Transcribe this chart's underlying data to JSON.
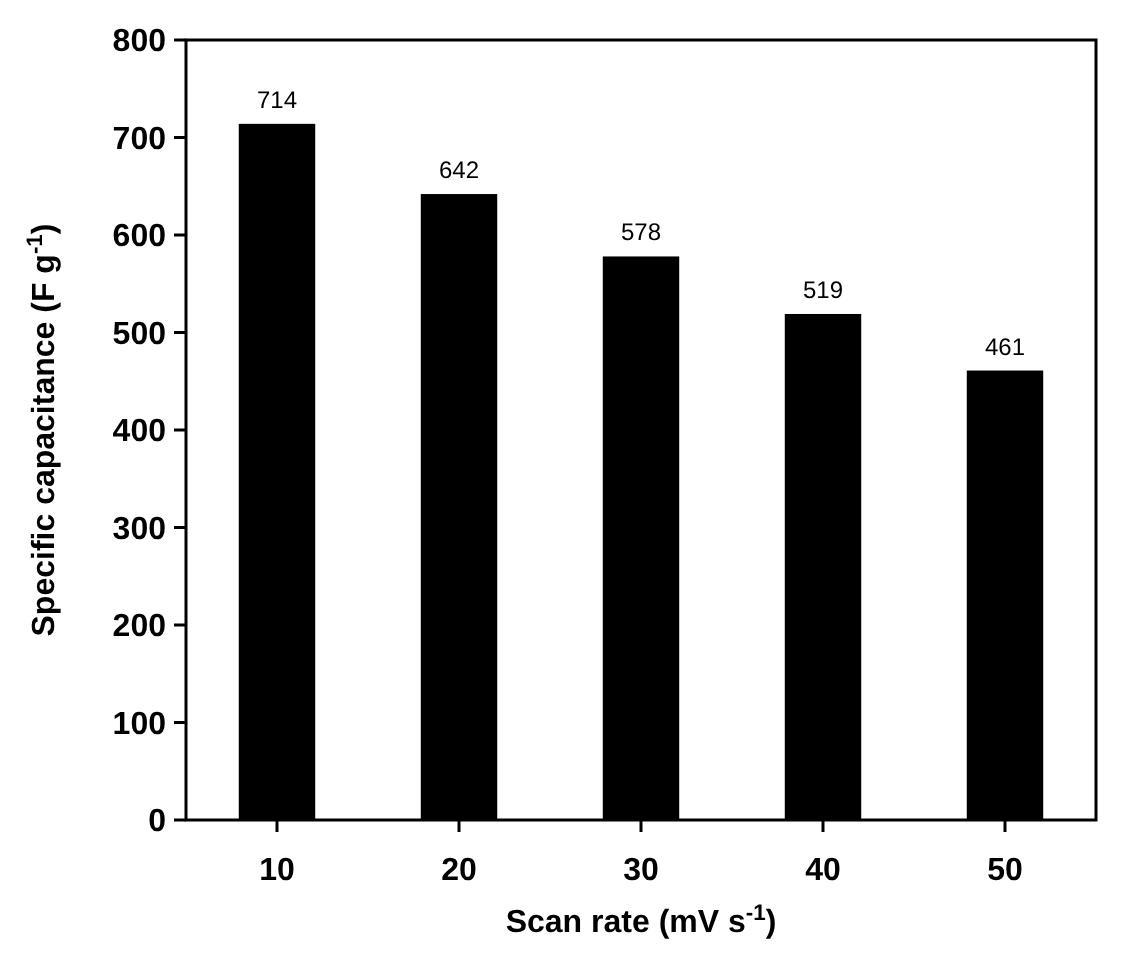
{
  "chart_data": {
    "type": "bar",
    "xlabel": "Scan rate (mV s$^{-1}$)",
    "ylabel": "Specific capacitance (F g$^{-1}$)",
    "categories": [
      "10",
      "20",
      "30",
      "40",
      "50"
    ],
    "values": [
      714,
      642,
      578,
      519,
      461
    ],
    "color": "#000000",
    "data_labels": true,
    "ylim": [
      0,
      800
    ],
    "yticks": [
      0,
      100,
      200,
      300,
      400,
      500,
      600,
      700,
      800
    ]
  }
}
